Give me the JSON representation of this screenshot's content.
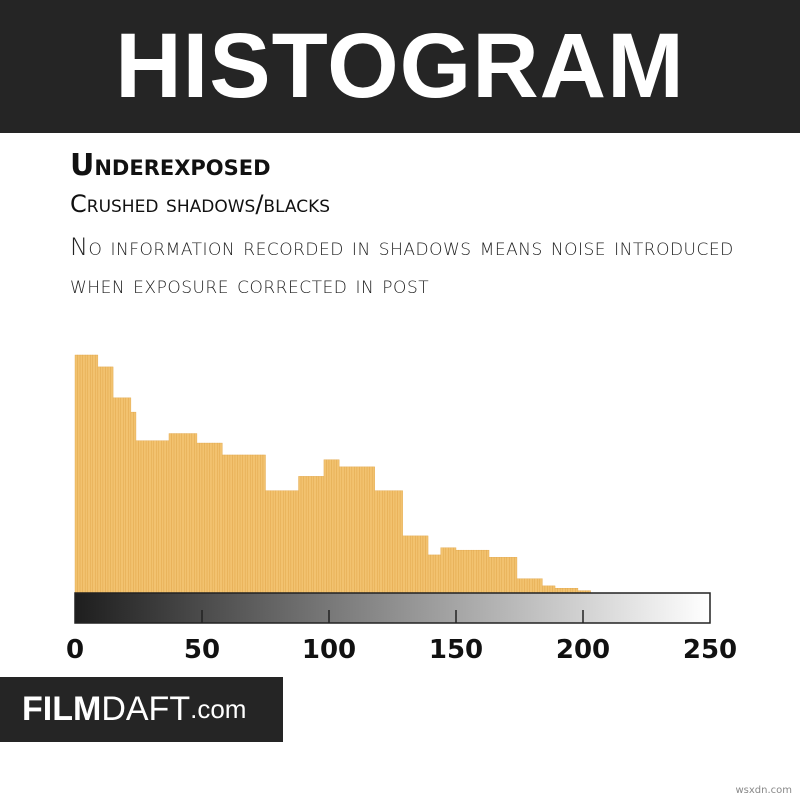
{
  "banner": {
    "title": "HISTOGRAM"
  },
  "heading": "Underexposed",
  "subheading": "Crushed shadows/blacks",
  "description": "No information recorded in shadows means noise introduced when exposure corrected in post",
  "logo": {
    "part1": "FILM",
    "part2": "DAFT",
    "part3": ".com"
  },
  "watermark": "wsxdn.com",
  "colors": {
    "bar": "#f2c26f",
    "bar_stripe": "#e0a548",
    "banner": "#252525",
    "gradient_start": "#1e1e1e",
    "gradient_end": "#ffffff"
  },
  "chart_data": {
    "type": "bar",
    "title": "",
    "xlabel": "",
    "ylabel": "",
    "xlim": [
      0,
      250
    ],
    "xticks": [
      0,
      50,
      100,
      150,
      200,
      250
    ],
    "tick_labels": [
      "0",
      "50",
      "100",
      "150",
      "200",
      "250"
    ],
    "y_scale": "relative (max = 100)",
    "grid": false,
    "bins": [
      {
        "from": 0,
        "to": 9,
        "count": 100
      },
      {
        "from": 9,
        "to": 15,
        "count": 95
      },
      {
        "from": 15,
        "to": 22,
        "count": 82
      },
      {
        "from": 22,
        "to": 24,
        "count": 76
      },
      {
        "from": 24,
        "to": 37,
        "count": 64
      },
      {
        "from": 37,
        "to": 48,
        "count": 67
      },
      {
        "from": 48,
        "to": 58,
        "count": 63
      },
      {
        "from": 58,
        "to": 75,
        "count": 58
      },
      {
        "from": 75,
        "to": 88,
        "count": 43
      },
      {
        "from": 88,
        "to": 98,
        "count": 49
      },
      {
        "from": 98,
        "to": 104,
        "count": 56
      },
      {
        "from": 104,
        "to": 118,
        "count": 53
      },
      {
        "from": 118,
        "to": 129,
        "count": 43
      },
      {
        "from": 129,
        "to": 139,
        "count": 24
      },
      {
        "from": 139,
        "to": 144,
        "count": 16
      },
      {
        "from": 144,
        "to": 150,
        "count": 19
      },
      {
        "from": 150,
        "to": 163,
        "count": 18
      },
      {
        "from": 163,
        "to": 174,
        "count": 15
      },
      {
        "from": 174,
        "to": 184,
        "count": 6
      },
      {
        "from": 184,
        "to": 189,
        "count": 3
      },
      {
        "from": 189,
        "to": 198,
        "count": 2
      },
      {
        "from": 198,
        "to": 203,
        "count": 1
      }
    ]
  }
}
